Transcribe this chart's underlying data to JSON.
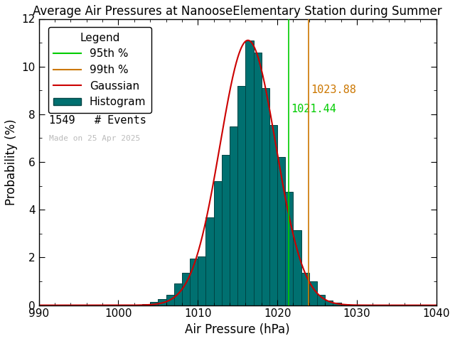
{
  "title": "Average Air Pressures at NanooseElementary Station during Summer",
  "xlabel": "Air Pressure (hPa)",
  "ylabel": "Probability (%)",
  "xlim": [
    990,
    1040
  ],
  "ylim": [
    0,
    12
  ],
  "xticks": [
    990,
    1000,
    1010,
    1020,
    1030,
    1040
  ],
  "yticks": [
    0,
    2,
    4,
    6,
    8,
    10,
    12
  ],
  "n_events": 1549,
  "percentile_95": 1021.44,
  "percentile_99": 1023.88,
  "hist_color": "#007070",
  "hist_edge_color": "#004444",
  "gaussian_color": "#cc0000",
  "p95_color": "#00cc00",
  "p99_color": "#cc7700",
  "background_color": "#ffffff",
  "axes_bg_color": "#ffffff",
  "text_color": "#000000",
  "made_on_text": "Made on 25 Apr 2025",
  "made_on_color": "#bbbbbb",
  "hist_bins_left": [
    1003,
    1004,
    1005,
    1006,
    1007,
    1008,
    1009,
    1010,
    1011,
    1012,
    1013,
    1014,
    1015,
    1016,
    1017,
    1018,
    1019,
    1020,
    1021,
    1022,
    1023,
    1024,
    1025,
    1026,
    1027,
    1028,
    1029
  ],
  "hist_probs": [
    0.06,
    0.13,
    0.26,
    0.45,
    0.9,
    1.35,
    1.94,
    2.05,
    3.68,
    5.2,
    6.3,
    7.5,
    9.2,
    11.1,
    10.6,
    9.1,
    7.55,
    6.2,
    4.75,
    3.15,
    1.35,
    1.0,
    0.45,
    0.2,
    0.1,
    0.05,
    0.02
  ],
  "gauss_mean": 1016.3,
  "gauss_std": 3.5,
  "gauss_peak": 11.1,
  "title_fontsize": 12,
  "axis_fontsize": 12,
  "tick_fontsize": 11,
  "legend_fontsize": 11
}
